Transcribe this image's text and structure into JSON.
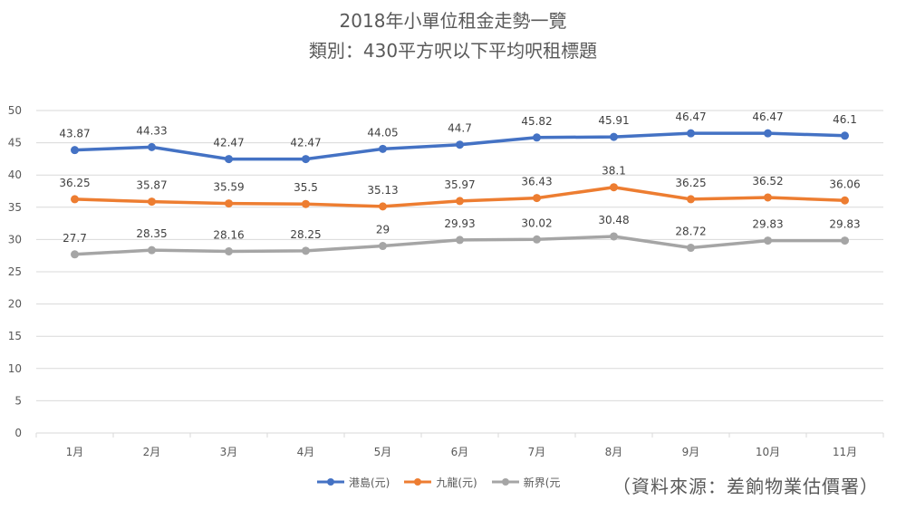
{
  "chart_data": {
    "type": "line",
    "title": "2018年小單位租金走勢一覽",
    "subtitle": "類別：430平方呎以下平均呎租標題",
    "categories": [
      "1月",
      "2月",
      "3月",
      "4月",
      "5月",
      "6月",
      "7月",
      "8月",
      "9月",
      "10月",
      "11月"
    ],
    "ylim": [
      0,
      50
    ],
    "yticks": [
      0,
      5,
      10,
      15,
      20,
      25,
      30,
      35,
      40,
      45,
      50
    ],
    "grid": true,
    "legend_position": "bottom",
    "series": [
      {
        "name": "港島(元)",
        "color": "#4472C4",
        "values": [
          43.87,
          44.33,
          42.47,
          42.47,
          44.05,
          44.7,
          45.82,
          45.91,
          46.47,
          46.47,
          46.1
        ],
        "labels": [
          "43.87",
          "44.33",
          "42.47",
          "42.47",
          "44.05",
          "44.7",
          "45.82",
          "45.91",
          "46.47",
          "46.47",
          "46.1"
        ]
      },
      {
        "name": "九龍(元)",
        "color": "#ED7D31",
        "values": [
          36.25,
          35.87,
          35.59,
          35.5,
          35.13,
          35.97,
          36.43,
          38.1,
          36.25,
          36.52,
          36.06
        ],
        "labels": [
          "36.25",
          "35.87",
          "35.59",
          "35.5",
          "35.13",
          "35.97",
          "36.43",
          "38.1",
          "36.25",
          "36.52",
          "36.06"
        ]
      },
      {
        "name": "新界(元",
        "color": "#A5A5A5",
        "values": [
          27.7,
          28.35,
          28.16,
          28.25,
          29,
          29.93,
          30.02,
          30.48,
          28.72,
          29.83,
          29.83
        ],
        "labels": [
          "27.7",
          "28.35",
          "28.16",
          "28.25",
          "29",
          "29.93",
          "30.02",
          "30.48",
          "28.72",
          "29.83",
          "29.83"
        ]
      }
    ],
    "annotation": "（資料來源：差餉物業估價署）"
  }
}
